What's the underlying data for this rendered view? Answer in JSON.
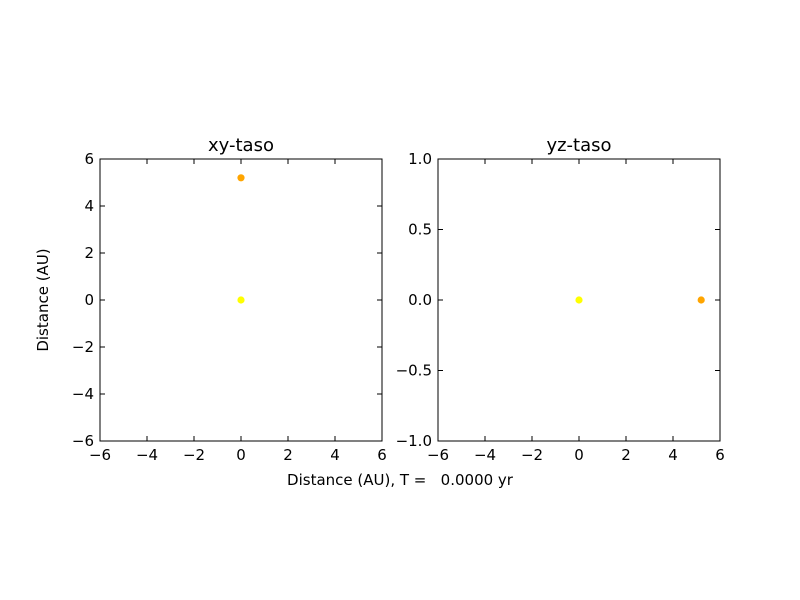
{
  "figure": {
    "ylabel": "Distance (AU)",
    "xlabel": "Distance (AU), T =   0.0000 yr"
  },
  "colors": {
    "sun": "#ffff00",
    "planet": "#ffa500",
    "axes": "#000000",
    "background": "#ffffff"
  },
  "chart_data": [
    {
      "type": "scatter",
      "title": "xy-taso",
      "xlim": [
        -6,
        6
      ],
      "ylim": [
        -6,
        6
      ],
      "xticks": [
        -6,
        -4,
        -2,
        0,
        2,
        4,
        6
      ],
      "yticks": [
        -6,
        -4,
        -2,
        0,
        2,
        4,
        6
      ],
      "xtick_labels": [
        "−6",
        "−4",
        "−2",
        "0",
        "2",
        "4",
        "6"
      ],
      "ytick_labels": [
        "−6",
        "−4",
        "−2",
        "0",
        "2",
        "4",
        "6"
      ],
      "grid": false,
      "points": [
        {
          "x": 0,
          "y": 5.2,
          "color": "#ffa500"
        },
        {
          "x": 0,
          "y": 0,
          "color": "#ffff00"
        }
      ]
    },
    {
      "type": "scatter",
      "title": "yz-taso",
      "xlim": [
        -6,
        6
      ],
      "ylim": [
        -1,
        1
      ],
      "xticks": [
        -6,
        -4,
        -2,
        0,
        2,
        4,
        6
      ],
      "yticks": [
        -1,
        -0.5,
        0,
        0.5,
        1
      ],
      "xtick_labels": [
        "−6",
        "−4",
        "−2",
        "0",
        "2",
        "4",
        "6"
      ],
      "ytick_labels": [
        "−1.0",
        "−0.5",
        "0.0",
        "0.5",
        "1.0"
      ],
      "grid": false,
      "points": [
        {
          "x": 0,
          "y": 0,
          "color": "#ffff00"
        },
        {
          "x": 5.2,
          "y": 0,
          "color": "#ffa500"
        }
      ]
    }
  ]
}
